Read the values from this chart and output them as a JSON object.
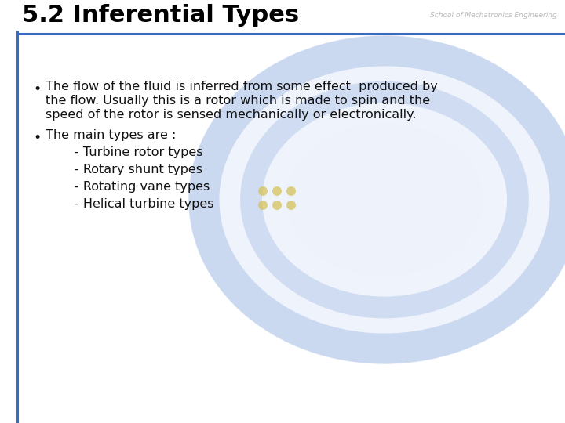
{
  "title": "5.2 Inferential Types",
  "subtitle": "School of Mechatronics Engineering",
  "background_color": "#ffffff",
  "title_color": "#000000",
  "title_fontsize": 22,
  "header_line_color": "#3a6bbf",
  "left_line_color": "#3a6bbf",
  "bullet1_line1": "The flow of the fluid is inferred from some effect  produced by",
  "bullet1_line2": "the flow. Usually this is a rotor which is made to spin and the",
  "bullet1_line3": "speed of the rotor is sensed mechanically or electronically.",
  "bullet2_intro": "The main types are :",
  "bullet2_items": [
    "- Turbine rotor types",
    "- Rotary shunt types",
    "- Rotating vane types",
    "- Helical turbine types"
  ],
  "text_color": "#111111",
  "text_fontsize": 11.5,
  "watermark_ring_color": "#8aaade",
  "watermark_fill_color": "#ccd8f0",
  "watermark_white": "#f0f4ff",
  "watermark_dot_color": "#d4c050"
}
